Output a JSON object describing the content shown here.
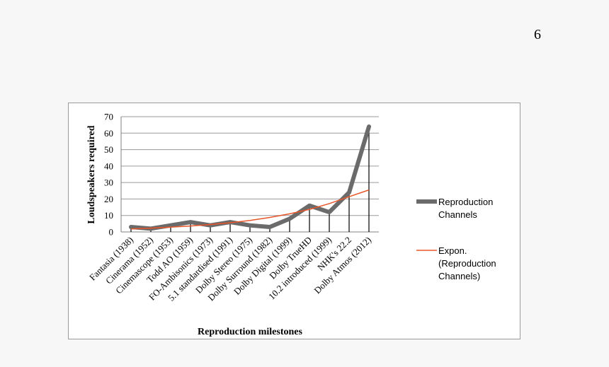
{
  "page": {
    "number": "6"
  },
  "chart_data": {
    "type": "line",
    "title": "",
    "xlabel": "Reproduction milestones",
    "ylabel": "Loudspeakers required",
    "ylim": [
      0,
      70
    ],
    "yticks": [
      0,
      10,
      20,
      30,
      40,
      50,
      60,
      70
    ],
    "grid": true,
    "legend_position": "right",
    "categories": [
      "Fantasia (1938)",
      "Cinerama (1952)",
      "Cinemascope (1953)",
      "Todd AO (1959)",
      "FO-Ambisonics (1973)",
      "5.1 standardised (1991)",
      "Dolby Stereo (1975)",
      "Dolby Surround (1982)",
      "Dolby Digital (1999)",
      "Dolby TrueHD",
      "10.2 introduced (1999)",
      "NHK's 22.2",
      "Dolby Atmos (2012)"
    ],
    "series": [
      {
        "name": "Reproduction Channels",
        "color": "#6b6b6b",
        "values": [
          3,
          2,
          4,
          6,
          4,
          6,
          4,
          3,
          8,
          16,
          12,
          24,
          64
        ]
      },
      {
        "name": "Expon. (Reproduction Channels)",
        "color": "#e8562a",
        "values": [
          1.8,
          2.3,
          2.9,
          3.6,
          4.5,
          5.6,
          7.0,
          8.8,
          11.0,
          13.7,
          17.2,
          21.4,
          25.5
        ]
      }
    ],
    "legend_lines": [
      [
        "Reproduction",
        "Channels"
      ],
      [
        "Expon.",
        "(Reproduction",
        "Channels)"
      ]
    ]
  }
}
